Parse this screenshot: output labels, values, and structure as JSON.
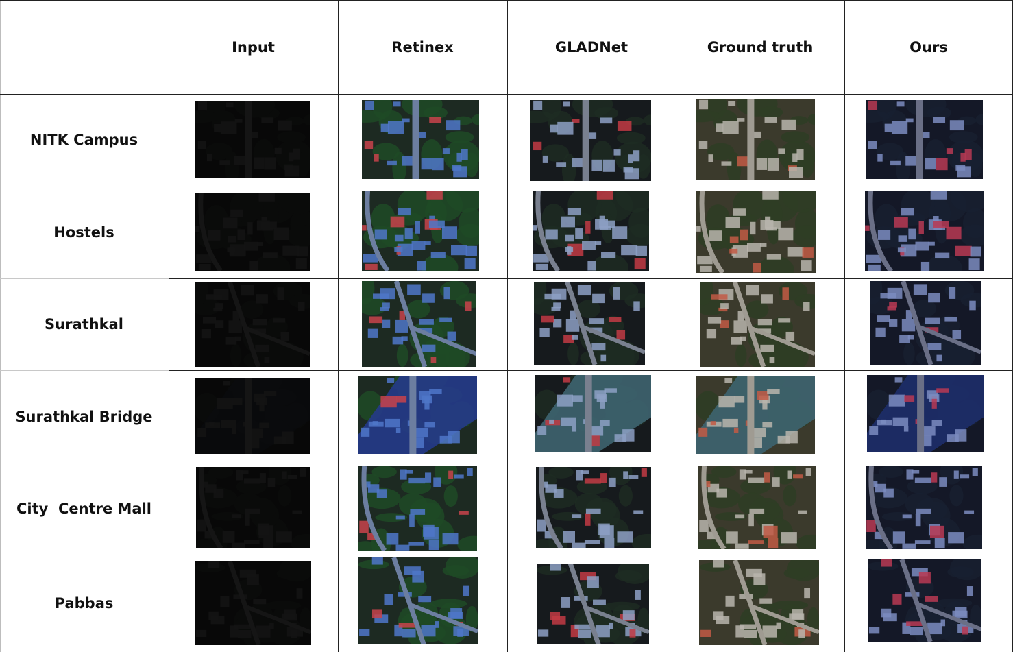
{
  "columns": [
    "Input",
    "Retinex",
    "GLADNet",
    "Ground truth",
    "Ours"
  ],
  "rows": [
    "NITK Campus",
    "Hostels",
    "Surathkal",
    "Surathkal Bridge",
    "City  Centre Mall",
    "Pabbas"
  ],
  "method_palettes": {
    "Input": {
      "base": "#080808",
      "road": "#151515",
      "build": "#141414",
      "veg": "#0b0c0b"
    },
    "Retinex": {
      "base": "#1d2a22",
      "road": "#6c7ea0",
      "build": "#4f77c9",
      "veg": "#1f4a26",
      "accent": "#c8434b"
    },
    "GLADNet": {
      "base": "#161a1d",
      "road": "#79808f",
      "build": "#8da0c4",
      "veg": "#1d2b22",
      "accent": "#c23b44"
    },
    "Ground truth": {
      "base": "#3b3a2c",
      "road": "#9f9b92",
      "build": "#b9b5ad",
      "veg": "#2e3d25",
      "accent": "#c25a45"
    },
    "Ours": {
      "base": "#141827",
      "road": "#6a6f86",
      "build": "#7b8cc0",
      "veg": "#172030",
      "accent": "#b83a54"
    }
  }
}
